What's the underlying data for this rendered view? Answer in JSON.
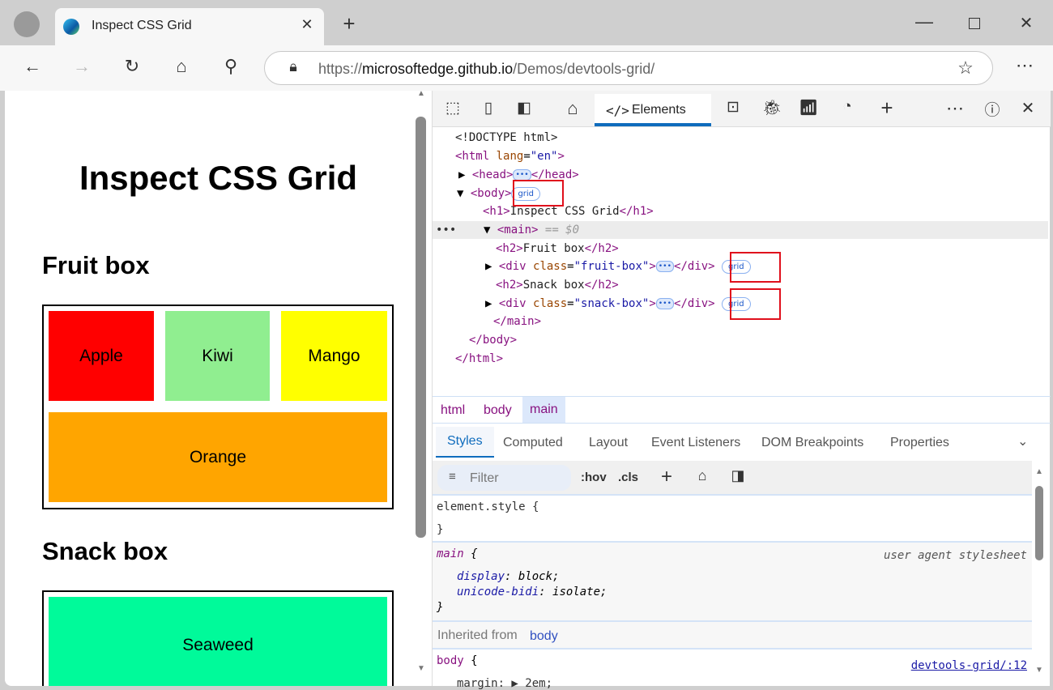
{
  "browser": {
    "tab_title": "Inspect CSS Grid",
    "url_prefix": "https://",
    "url_host": "microsoftedge.github.io",
    "url_path": "/Demos/devtools-grid/"
  },
  "page": {
    "title": "Inspect CSS Grid",
    "fruit_heading": "Fruit box",
    "snack_heading": "Snack box",
    "fruits": [
      {
        "label": "Apple",
        "color": "#ff0000"
      },
      {
        "label": "Kiwi",
        "color": "#90ee90"
      },
      {
        "label": "Mango",
        "color": "#ffff00"
      },
      {
        "label": "Orange",
        "color": "#ffa500"
      }
    ],
    "snacks": [
      {
        "label": "Seaweed",
        "color": "#00fa9a"
      }
    ]
  },
  "devtools": {
    "elements_tab": "Elements",
    "dom": {
      "doctype": "<!DOCTYPE html>",
      "html_open": "<html",
      "lang_attr": "lang",
      "lang_val": "\"en\"",
      "head": "<head>",
      "head_close": "</head>",
      "body": "<body>",
      "grid": "grid",
      "h1_open": "<h1>",
      "h1_text": "Inspect CSS Grid",
      "h1_close": "</h1>",
      "main": "<main>",
      "selected_marker": "== $0",
      "h2_open": "<h2>",
      "fruit_text": "Fruit box",
      "h2_close": "</h2>",
      "snack_text": "Snack box",
      "div_open": "<div",
      "class_attr": "class",
      "fruit_class": "\"fruit-box\"",
      "snack_class": "\"snack-box\"",
      "div_close": "</div>",
      "main_close": "</main>",
      "body_close": "</body>",
      "html_close": "</html>"
    },
    "breadcrumbs": [
      "html",
      "body",
      "main"
    ],
    "subtabs": [
      "Styles",
      "Computed",
      "Layout",
      "Event Listeners",
      "DOM Breakpoints",
      "Properties"
    ],
    "filter_placeholder": "Filter",
    "hov": ":hov",
    "cls": ".cls",
    "styles": {
      "element_style": "element.style {",
      "close": "}",
      "main_selector": "main",
      "open": "{",
      "ua": "user agent stylesheet",
      "prop1": "display",
      "val1": "block;",
      "prop2": "unicode-bidi",
      "val2": "isolate;",
      "inherited_label": "Inherited from",
      "inherited_from": "body",
      "body_selector": "body",
      "source": "devtools-grid/:12",
      "partial": "margin: ▶ 2em;"
    }
  }
}
